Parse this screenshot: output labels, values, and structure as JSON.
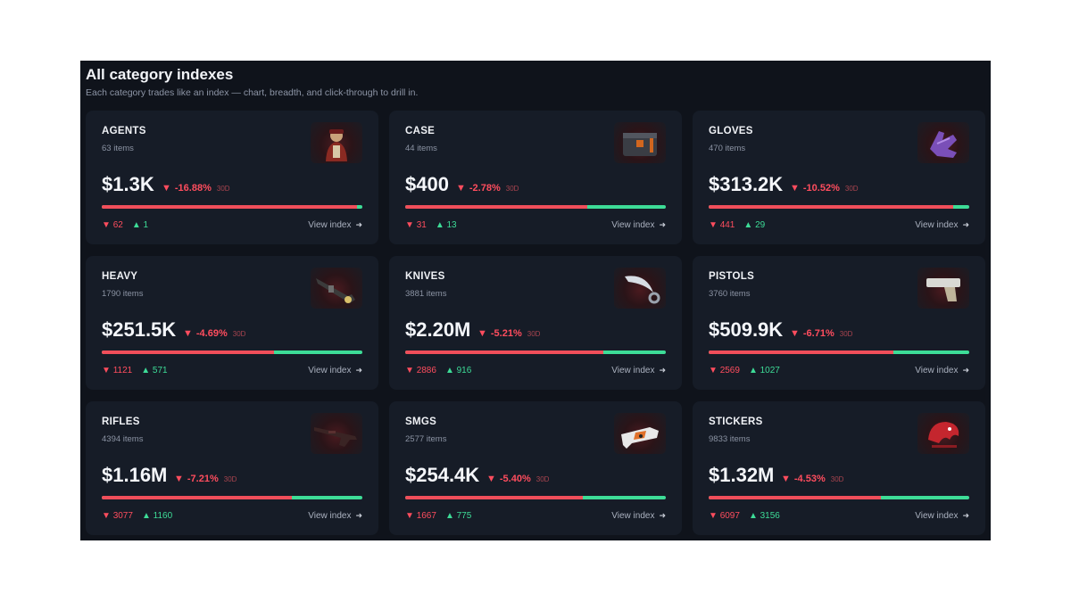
{
  "header": {
    "title": "All category indexes",
    "subtitle": "Each category trades like an index — chart, breadth, and click-through to drill in."
  },
  "colors": {
    "down": "#ff4d5e",
    "up": "#3ddc97",
    "panel": "#0f131b",
    "card": "#161c27"
  },
  "cards": [
    {
      "name": "AGENTS",
      "count": "63 items",
      "value": "$1.3K",
      "change": "-16.88%",
      "period": "30D",
      "down": "62",
      "up": "1",
      "down_fraction": 0.98,
      "link": "View index",
      "icon": "agent-icon"
    },
    {
      "name": "CASE",
      "count": "44 items",
      "value": "$400",
      "change": "-2.78%",
      "period": "30D",
      "down": "31",
      "up": "13",
      "down_fraction": 0.7,
      "link": "View index",
      "icon": "case-icon"
    },
    {
      "name": "GLOVES",
      "count": "470 items",
      "value": "$313.2K",
      "change": "-10.52%",
      "period": "30D",
      "down": "441",
      "up": "29",
      "down_fraction": 0.94,
      "link": "View index",
      "icon": "gloves-icon"
    },
    {
      "name": "HEAVY",
      "count": "1790 items",
      "value": "$251.5K",
      "change": "-4.69%",
      "period": "30D",
      "down": "1121",
      "up": "571",
      "down_fraction": 0.66,
      "link": "View index",
      "icon": "heavy-gun-icon"
    },
    {
      "name": "KNIVES",
      "count": "3881 items",
      "value": "$2.20M",
      "change": "-5.21%",
      "period": "30D",
      "down": "2886",
      "up": "916",
      "down_fraction": 0.76,
      "link": "View index",
      "icon": "knife-icon"
    },
    {
      "name": "PISTOLS",
      "count": "3760 items",
      "value": "$509.9K",
      "change": "-6.71%",
      "period": "30D",
      "down": "2569",
      "up": "1027",
      "down_fraction": 0.71,
      "link": "View index",
      "icon": "pistol-icon"
    },
    {
      "name": "RIFLES",
      "count": "4394 items",
      "value": "$1.16M",
      "change": "-7.21%",
      "period": "30D",
      "down": "3077",
      "up": "1160",
      "down_fraction": 0.73,
      "link": "View index",
      "icon": "rifle-icon"
    },
    {
      "name": "SMGS",
      "count": "2577 items",
      "value": "$254.4K",
      "change": "-5.40%",
      "period": "30D",
      "down": "1667",
      "up": "775",
      "down_fraction": 0.68,
      "link": "View index",
      "icon": "smg-icon"
    },
    {
      "name": "STICKERS",
      "count": "9833 items",
      "value": "$1.32M",
      "change": "-4.53%",
      "period": "30D",
      "down": "6097",
      "up": "3156",
      "down_fraction": 0.66,
      "link": "View index",
      "icon": "sticker-icon"
    }
  ]
}
